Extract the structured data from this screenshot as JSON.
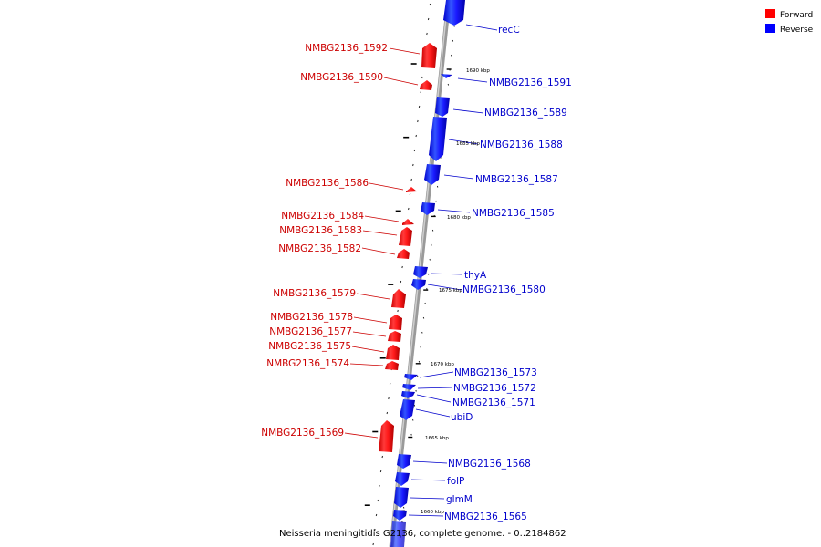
{
  "legend": {
    "forward": {
      "label": "Forward",
      "color": "#ff0000"
    },
    "reverse": {
      "label": "Reverse",
      "color": "#0000ff"
    }
  },
  "caption": "Neisseria meningitidis G2136, complete genome. - 0..2184862",
  "axis_labels": [
    "1690 kbp",
    "1685 kbp",
    "1680 kbp",
    "1675 kbp",
    "1670 kbp",
    "1665 kbp",
    "1660 kbp"
  ],
  "genes": [
    {
      "label": "recC",
      "strand": "reverse"
    },
    {
      "label": "NMBG2136_1592",
      "strand": "forward"
    },
    {
      "label": "NMBG2136_1590",
      "strand": "forward"
    },
    {
      "label": "NMBG2136_1591",
      "strand": "reverse"
    },
    {
      "label": "NMBG2136_1589",
      "strand": "reverse"
    },
    {
      "label": "NMBG2136_1588",
      "strand": "reverse"
    },
    {
      "label": "NMBG2136_1587",
      "strand": "reverse"
    },
    {
      "label": "NMBG2136_1586",
      "strand": "forward"
    },
    {
      "label": "NMBG2136_1585",
      "strand": "reverse"
    },
    {
      "label": "NMBG2136_1584",
      "strand": "forward"
    },
    {
      "label": "NMBG2136_1583",
      "strand": "forward"
    },
    {
      "label": "NMBG2136_1582",
      "strand": "forward"
    },
    {
      "label": "thyA",
      "strand": "reverse"
    },
    {
      "label": "NMBG2136_1580",
      "strand": "reverse"
    },
    {
      "label": "NMBG2136_1579",
      "strand": "forward"
    },
    {
      "label": "NMBG2136_1578",
      "strand": "forward"
    },
    {
      "label": "NMBG2136_1577",
      "strand": "forward"
    },
    {
      "label": "NMBG2136_1575",
      "strand": "forward"
    },
    {
      "label": "NMBG2136_1574",
      "strand": "forward"
    },
    {
      "label": "NMBG2136_1573",
      "strand": "reverse"
    },
    {
      "label": "NMBG2136_1572",
      "strand": "reverse"
    },
    {
      "label": "NMBG2136_1571",
      "strand": "reverse"
    },
    {
      "label": "ubiD",
      "strand": "reverse"
    },
    {
      "label": "NMBG2136_1569",
      "strand": "forward"
    },
    {
      "label": "NMBG2136_1568",
      "strand": "reverse"
    },
    {
      "label": "folP",
      "strand": "reverse"
    },
    {
      "label": "glmM",
      "strand": "reverse"
    },
    {
      "label": "NMBG2136_1565",
      "strand": "reverse"
    }
  ]
}
